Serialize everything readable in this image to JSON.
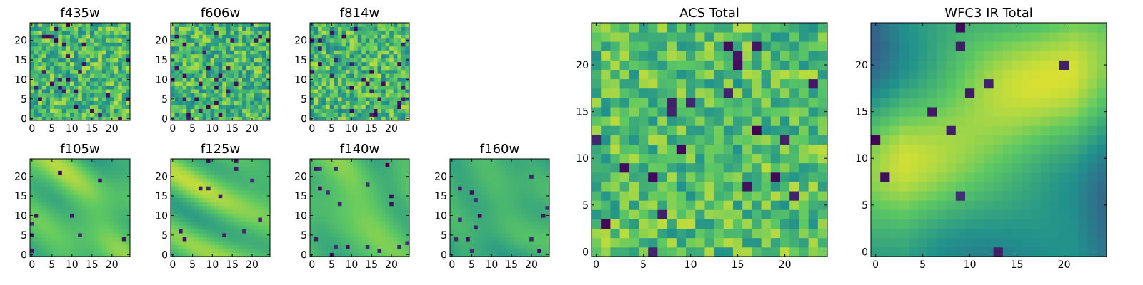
{
  "figure": {
    "background": "#ffffff"
  },
  "colormap": {
    "name": "viridis",
    "stops": [
      "#440154",
      "#3b528b",
      "#21918c",
      "#5ec962",
      "#fde725"
    ]
  },
  "chart_data": [
    {
      "id": "f435w",
      "type": "heatmap",
      "title": "f435w",
      "xlim": [
        -0.5,
        24.5
      ],
      "ylim": [
        -0.5,
        24.5
      ],
      "grid_size": 25,
      "value_range": [
        0,
        1
      ],
      "texture": "noise",
      "level": 0.68,
      "spread": 0.22,
      "seed": 11,
      "xticks": [
        0,
        5,
        10,
        15,
        20
      ],
      "yticks": [
        0,
        5,
        10,
        15,
        20
      ]
    },
    {
      "id": "f606w",
      "type": "heatmap",
      "title": "f606w",
      "xlim": [
        -0.5,
        24.5
      ],
      "ylim": [
        -0.5,
        24.5
      ],
      "grid_size": 25,
      "value_range": [
        0,
        1
      ],
      "texture": "noise",
      "level": 0.66,
      "spread": 0.23,
      "seed": 23,
      "xticks": [
        0,
        5,
        10,
        15,
        20
      ],
      "yticks": [
        0,
        5,
        10,
        15,
        20
      ]
    },
    {
      "id": "f814w",
      "type": "heatmap",
      "title": "f814w",
      "xlim": [
        -0.5,
        24.5
      ],
      "ylim": [
        -0.5,
        24.5
      ],
      "grid_size": 25,
      "value_range": [
        0,
        1
      ],
      "texture": "noise",
      "level": 0.67,
      "spread": 0.23,
      "seed": 37,
      "xticks": [
        0,
        5,
        10,
        15,
        20
      ],
      "yticks": [
        0,
        5,
        10,
        15,
        20
      ]
    },
    {
      "id": "f105w",
      "type": "heatmap",
      "title": "f105w",
      "xlim": [
        -0.5,
        24.5
      ],
      "ylim": [
        -0.5,
        24.5
      ],
      "grid_size": 25,
      "value_range": [
        0,
        1
      ],
      "texture": "smooth",
      "level": 0.62,
      "spread": 0.22,
      "seed": 41,
      "xticks": [
        0,
        5,
        10,
        15,
        20
      ],
      "yticks": [
        0,
        5,
        10,
        15,
        20
      ]
    },
    {
      "id": "f125w",
      "type": "heatmap",
      "title": "f125w",
      "xlim": [
        -0.5,
        24.5
      ],
      "ylim": [
        -0.5,
        24.5
      ],
      "grid_size": 25,
      "value_range": [
        0,
        1
      ],
      "texture": "smooth",
      "level": 0.63,
      "spread": 0.22,
      "seed": 53,
      "xticks": [
        0,
        5,
        10,
        15,
        20
      ],
      "yticks": [
        0,
        5,
        10,
        15,
        20
      ]
    },
    {
      "id": "f140w",
      "type": "heatmap",
      "title": "f140w",
      "xlim": [
        -0.5,
        24.5
      ],
      "ylim": [
        -0.5,
        24.5
      ],
      "grid_size": 25,
      "value_range": [
        0,
        1
      ],
      "texture": "smooth",
      "level": 0.62,
      "spread": 0.22,
      "seed": 67,
      "xticks": [
        0,
        5,
        10,
        15,
        20
      ],
      "yticks": [
        0,
        5,
        10,
        15,
        20
      ]
    },
    {
      "id": "f160w",
      "type": "heatmap",
      "title": "f160w",
      "xlim": [
        -0.5,
        24.5
      ],
      "ylim": [
        -0.5,
        24.5
      ],
      "grid_size": 25,
      "value_range": [
        0,
        1
      ],
      "texture": "smooth",
      "level": 0.55,
      "spread": 0.25,
      "seed": 79,
      "xticks": [
        0,
        5,
        10,
        15,
        20
      ],
      "yticks": [
        0,
        5,
        10,
        15,
        20
      ]
    },
    {
      "id": "acs_total",
      "type": "heatmap",
      "title": "ACS Total",
      "xlim": [
        -0.5,
        24.5
      ],
      "ylim": [
        -0.5,
        24.5
      ],
      "grid_size": 25,
      "value_range": [
        0,
        1
      ],
      "texture": "noise",
      "level": 0.7,
      "spread": 0.2,
      "seed": 97,
      "xticks": [
        0,
        5,
        10,
        15,
        20
      ],
      "yticks": [
        0,
        5,
        10,
        15,
        20
      ]
    },
    {
      "id": "wfc3_ir_total",
      "type": "heatmap",
      "title": "WFC3 IR Total",
      "xlim": [
        -0.5,
        24.5
      ],
      "ylim": [
        -0.5,
        24.5
      ],
      "grid_size": 25,
      "value_range": [
        0,
        1
      ],
      "texture": "blob",
      "level": 0.55,
      "spread": 0.2,
      "seed": 101,
      "xticks": [
        0,
        5,
        10,
        15,
        20
      ],
      "yticks": [
        0,
        5,
        10,
        15,
        20
      ]
    }
  ]
}
